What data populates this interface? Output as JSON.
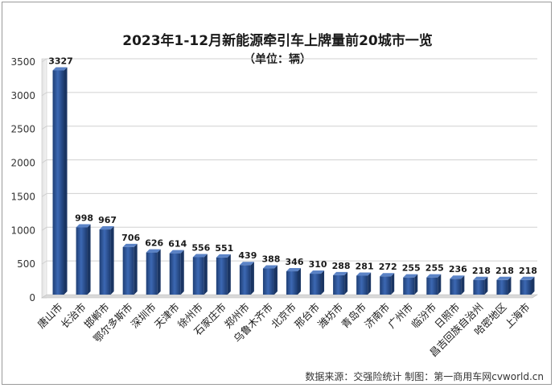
{
  "chart_data": {
    "type": "bar",
    "title": "2023年1-12月新能源牵引车上牌量前20城市一览",
    "subtitle": "（单位：辆）",
    "categories": [
      "唐山市",
      "长治市",
      "邯郸市",
      "鄂尔多斯市",
      "深圳市",
      "天津市",
      "徐州市",
      "石家庄市",
      "郑州市",
      "乌鲁木齐市",
      "北京市",
      "邢台市",
      "潍坊市",
      "青岛市",
      "济南市",
      "广州市",
      "临汾市",
      "日照市",
      "昌吉回族自治州",
      "哈密地区",
      "上海市"
    ],
    "values": [
      3327,
      998,
      967,
      706,
      626,
      614,
      556,
      551,
      439,
      388,
      346,
      310,
      288,
      281,
      272,
      255,
      255,
      236,
      218,
      218,
      218
    ],
    "ylim": [
      0,
      3500
    ],
    "yticks": [
      0,
      500,
      1000,
      1500,
      2000,
      2500,
      3000,
      3500
    ],
    "grid": true,
    "bar_color": "#2e5597"
  },
  "source": "数据来源：交强险统计  制图：第一商用车网cvworld.cn"
}
